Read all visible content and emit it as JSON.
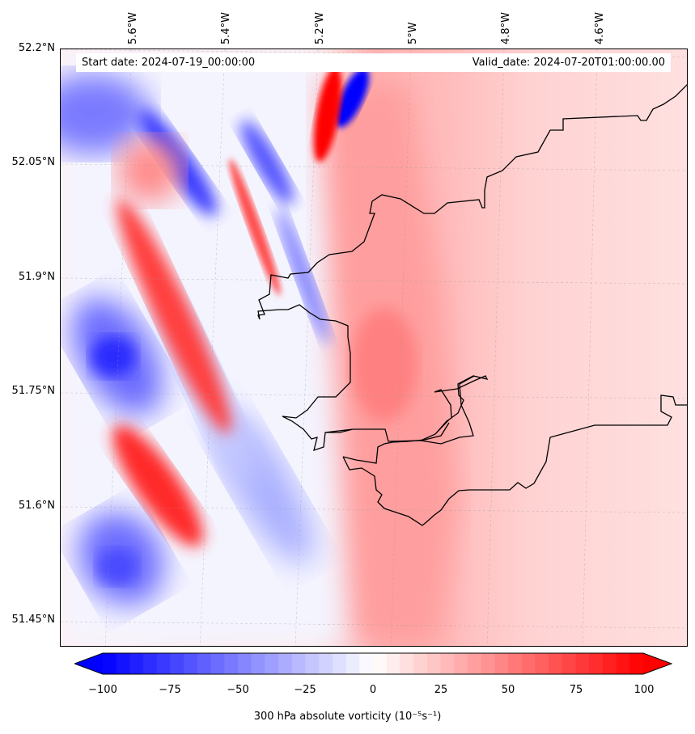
{
  "map": {
    "start_date": "Start date: 2024-07-19_00:00:00",
    "valid_date": "Valid_date: 2024-07-20T01:00:00.00",
    "lat_labels": [
      "52.2°N",
      "52.05°N",
      "51.9°N",
      "51.75°N",
      "51.6°N",
      "51.45°N"
    ],
    "lon_labels": [
      "5.6°W",
      "5.4°W",
      "5.2°W",
      "5°W",
      "4.8°W",
      "4.6°W"
    ],
    "colormap": "bwr",
    "colors": {
      "low": "#0000ff",
      "mid": "#ffffff",
      "high": "#ff0000",
      "coastline": "#000000"
    }
  },
  "colorbar": {
    "ticks": [
      "−100",
      "−75",
      "−50",
      "−25",
      "0",
      "25",
      "50",
      "75",
      "100"
    ],
    "min": -100,
    "max": 100,
    "label": "300 hPa absolute vorticity (10⁻⁵s⁻¹)"
  }
}
